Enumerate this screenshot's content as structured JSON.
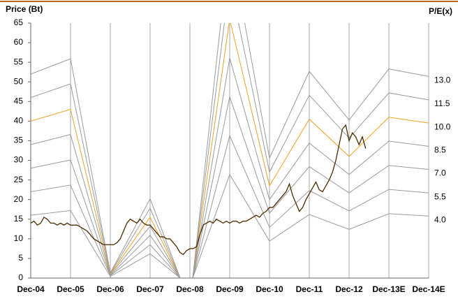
{
  "chart_data": {
    "type": "line",
    "y_label": "Price (Bt)",
    "y2_label": "P/E(x)",
    "categories": [
      "Dec-04",
      "Dec-05",
      "Dec-06",
      "Dec-07",
      "Dec-08",
      "Dec-09",
      "Dec-10",
      "Dec-11",
      "Dec-12",
      "Dec-13E",
      "Dec-14E"
    ],
    "ylim": [
      0,
      65
    ],
    "yticks": [
      0,
      5,
      10,
      15,
      20,
      25,
      30,
      35,
      40,
      45,
      50,
      55,
      60,
      65
    ],
    "series": [
      {
        "name": "4.0",
        "color": "#9a9a9a",
        "values": [
          16,
          17.2,
          0.4,
          6.2,
          -2,
          26.4,
          9.4,
          16.2,
          12.4,
          16.4,
          15.8
        ]
      },
      {
        "name": "5.5",
        "color": "#9a9a9a",
        "values": [
          22,
          23.7,
          0.6,
          8.5,
          -2.8,
          36.3,
          12.9,
          22.3,
          17.1,
          22.6,
          21.7
        ]
      },
      {
        "name": "7.0",
        "color": "#9a9a9a",
        "values": [
          28,
          30.1,
          0.7,
          10.9,
          -3.5,
          46.2,
          16.5,
          28.4,
          21.7,
          28.7,
          27.7
        ]
      },
      {
        "name": "8.5",
        "color": "#9a9a9a",
        "values": [
          34,
          36.6,
          0.9,
          13.2,
          -4.3,
          56.1,
          20,
          34.4,
          26.4,
          34.9,
          33.6
        ]
      },
      {
        "name": "10.0",
        "color": "#f0a020",
        "values": [
          40,
          43,
          1,
          15.5,
          -5,
          66,
          23.5,
          40.5,
          31,
          41,
          39.5
        ]
      },
      {
        "name": "11.5",
        "color": "#9a9a9a",
        "values": [
          46,
          49.5,
          1.2,
          17.8,
          -5.8,
          75.9,
          27,
          46.6,
          35.7,
          47.2,
          45.4
        ]
      },
      {
        "name": "13.0",
        "color": "#9a9a9a",
        "values": [
          52,
          55.9,
          1.3,
          20.2,
          -6.5,
          85.8,
          30.6,
          52.7,
          40.3,
          53.3,
          51.4
        ]
      }
    ],
    "price": {
      "color": "#4a2a00",
      "values": [
        14,
        14.5,
        13.5,
        14,
        15.5,
        15,
        14,
        14,
        13.5,
        14,
        13.5,
        14,
        13.5,
        13.5,
        13.5,
        13,
        12.5,
        12,
        11,
        10,
        9.5,
        9,
        8.5,
        8.5,
        8.5,
        8.5,
        9,
        10,
        12,
        14,
        15,
        14.5,
        14,
        15,
        14,
        13.5,
        13.5,
        12.5,
        11.5,
        10.5,
        10.5,
        10,
        10,
        9,
        8,
        6.5,
        6,
        7,
        7.5,
        7.5,
        8,
        11,
        13.5,
        14,
        14.5,
        14,
        15,
        14.5,
        14,
        14.5,
        14,
        14.5,
        14.5,
        14,
        14.5,
        14.5,
        15,
        15.5,
        16,
        15.5,
        16.5,
        17,
        18,
        18,
        19,
        20,
        21,
        22,
        24,
        21,
        19,
        17,
        18,
        20,
        21.5,
        23,
        24.5,
        22.5,
        22,
        23.5,
        25,
        27,
        30,
        34,
        38,
        39,
        35,
        37,
        36,
        34,
        36,
        33
      ]
    }
  }
}
